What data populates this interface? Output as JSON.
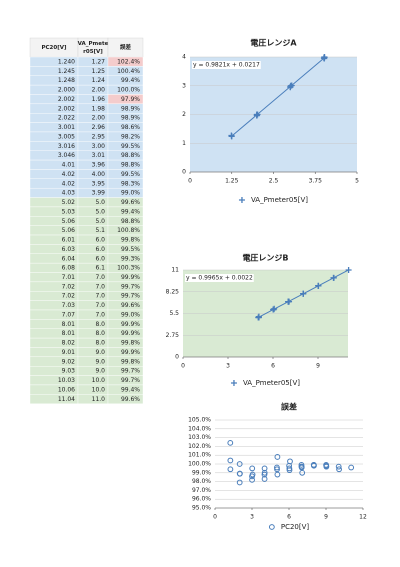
{
  "table": {
    "header": [
      "PC20[V]",
      "VA_Pmeter05[V]",
      "誤差"
    ],
    "groups": [
      {
        "color": "#cfe2f3",
        "rows": [
          [
            "1.240",
            "1.27",
            "102.4%"
          ],
          [
            "1.245",
            "1.25",
            "100.4%"
          ],
          [
            "1.248",
            "1.24",
            "99.4%"
          ],
          [
            "2.000",
            "2.00",
            "100.0%"
          ],
          [
            "2.002",
            "1.96",
            "97.9%"
          ],
          [
            "2.002",
            "1.98",
            "98.9%"
          ],
          [
            "2.022",
            "2.00",
            "98.9%"
          ],
          [
            "3.001",
            "2.96",
            "98.6%"
          ],
          [
            "3.005",
            "2.95",
            "98.2%"
          ],
          [
            "3.016",
            "3.00",
            "99.5%"
          ],
          [
            "3.046",
            "3.01",
            "98.8%"
          ],
          [
            "4.01",
            "3.96",
            "98.8%"
          ],
          [
            "4.02",
            "4.00",
            "99.5%"
          ],
          [
            "4.02",
            "3.95",
            "98.3%"
          ],
          [
            "4.03",
            "3.99",
            "99.0%"
          ]
        ]
      },
      {
        "color": "#d9ead3",
        "rows": [
          [
            "5.02",
            "5.0",
            "99.6%"
          ],
          [
            "5.03",
            "5.0",
            "99.4%"
          ],
          [
            "5.06",
            "5.0",
            "98.8%"
          ],
          [
            "5.06",
            "5.1",
            "100.8%"
          ],
          [
            "6.01",
            "6.0",
            "99.8%"
          ],
          [
            "6.03",
            "6.0",
            "99.5%"
          ],
          [
            "6.04",
            "6.0",
            "99.3%"
          ],
          [
            "6.08",
            "6.1",
            "100.3%"
          ],
          [
            "7.01",
            "7.0",
            "99.9%"
          ],
          [
            "7.02",
            "7.0",
            "99.7%"
          ],
          [
            "7.02",
            "7.0",
            "99.7%"
          ],
          [
            "7.03",
            "7.0",
            "99.6%"
          ],
          [
            "7.07",
            "7.0",
            "99.0%"
          ],
          [
            "8.01",
            "8.0",
            "99.9%"
          ],
          [
            "8.01",
            "8.0",
            "99.9%"
          ],
          [
            "8.02",
            "8.0",
            "99.8%"
          ],
          [
            "9.01",
            "9.0",
            "99.9%"
          ],
          [
            "9.02",
            "9.0",
            "99.8%"
          ],
          [
            "9.03",
            "9.0",
            "99.7%"
          ],
          [
            "10.03",
            "10.0",
            "99.7%"
          ],
          [
            "10.06",
            "10.0",
            "99.4%"
          ],
          [
            "11.04",
            "11.0",
            "99.6%"
          ]
        ]
      }
    ],
    "highlights": [
      {
        "group": 0,
        "row": 0,
        "color": "#f4cccc"
      },
      {
        "group": 0,
        "row": 4,
        "color": "#f4cccc"
      }
    ]
  },
  "chart_data": [
    {
      "type": "scatter",
      "title": "電圧レンジA",
      "annotation": "y = 0.9821x + 0.0217",
      "trendline": {
        "slope": 0.9821,
        "intercept": 0.0217
      },
      "x": [
        1.24,
        1.245,
        1.248,
        2.0,
        2.002,
        2.002,
        2.022,
        3.001,
        3.005,
        3.016,
        3.046,
        4.01,
        4.02,
        4.02,
        4.03
      ],
      "series": [
        {
          "name": "VA_Pmeter05[V]",
          "color": "#4a7ebb",
          "marker": "plus",
          "values": [
            1.27,
            1.25,
            1.24,
            2.0,
            1.96,
            1.98,
            2.0,
            2.96,
            2.95,
            3.0,
            3.01,
            3.96,
            4.0,
            3.95,
            3.99
          ]
        }
      ],
      "xlim": [
        0,
        5
      ],
      "xticks": [
        0,
        1.25,
        2.5,
        3.75,
        5
      ],
      "ylim": [
        0,
        4
      ],
      "yticks": [
        0,
        1,
        2,
        3,
        4
      ],
      "background": "#cfe2f3",
      "grid": true
    },
    {
      "type": "scatter",
      "title": "電圧レンジB",
      "annotation": "y = 0.9965x + 0.0022",
      "trendline": {
        "slope": 0.9965,
        "intercept": 0.0022
      },
      "x": [
        5.02,
        5.03,
        5.06,
        5.06,
        6.01,
        6.03,
        6.04,
        6.08,
        7.01,
        7.02,
        7.02,
        7.03,
        7.07,
        8.01,
        8.01,
        8.02,
        9.01,
        9.02,
        9.03,
        10.03,
        10.06,
        11.04
      ],
      "series": [
        {
          "name": "VA_Pmeter05[V]",
          "color": "#4a7ebb",
          "marker": "plus",
          "values": [
            5.0,
            5.0,
            5.0,
            5.1,
            6.0,
            6.0,
            6.0,
            6.1,
            7.0,
            7.0,
            7.0,
            7.0,
            7.0,
            8.0,
            8.0,
            8.0,
            9.0,
            9.0,
            9.0,
            10.0,
            10.0,
            11.0
          ]
        }
      ],
      "xlim": [
        0,
        11
      ],
      "xticks": [
        0,
        3,
        6,
        9
      ],
      "ylim": [
        0,
        11
      ],
      "yticks": [
        0,
        2.75,
        5.5,
        8.25,
        11
      ],
      "background": "#d9ead3",
      "grid": true
    },
    {
      "type": "scatter",
      "title": "誤差",
      "x": [
        1.24,
        1.245,
        1.248,
        2.0,
        2.002,
        2.002,
        2.022,
        3.001,
        3.005,
        3.016,
        3.046,
        4.01,
        4.02,
        4.02,
        4.03,
        5.02,
        5.03,
        5.06,
        5.06,
        6.01,
        6.03,
        6.04,
        6.08,
        7.01,
        7.02,
        7.02,
        7.03,
        7.07,
        8.01,
        8.01,
        8.02,
        9.01,
        9.02,
        9.03,
        10.03,
        10.06,
        11.04
      ],
      "series": [
        {
          "name": "PC20[V]",
          "color": "#4a7ebb",
          "marker": "circle",
          "values": [
            102.4,
            100.4,
            99.4,
            100.0,
            97.9,
            98.9,
            98.9,
            98.6,
            98.2,
            99.5,
            98.8,
            98.8,
            99.5,
            98.3,
            99.0,
            99.6,
            99.4,
            98.8,
            100.8,
            99.8,
            99.5,
            99.3,
            100.3,
            99.9,
            99.7,
            99.7,
            99.6,
            99.0,
            99.9,
            99.9,
            99.8,
            99.9,
            99.8,
            99.7,
            99.7,
            99.4,
            99.6
          ]
        }
      ],
      "xlim": [
        0,
        12
      ],
      "xticks": [
        0,
        3,
        6,
        9,
        12
      ],
      "ylim": [
        95,
        105
      ],
      "yticks": [
        {
          "value": 95,
          "label": "95.0%"
        },
        {
          "value": 96,
          "label": "96.0%"
        },
        {
          "value": 97,
          "label": "97.0%"
        },
        {
          "value": 98,
          "label": "98.0%"
        },
        {
          "value": 99,
          "label": "99.0%"
        },
        {
          "value": 100,
          "label": "100.0%"
        },
        {
          "value": 101,
          "label": "101.0%"
        },
        {
          "value": 102,
          "label": "102.0%"
        },
        {
          "value": 103,
          "label": "103.0%"
        },
        {
          "value": 104,
          "label": "104.0%"
        },
        {
          "value": 105,
          "label": "105.0%"
        }
      ],
      "background": "#ffffff",
      "grid": true
    }
  ]
}
